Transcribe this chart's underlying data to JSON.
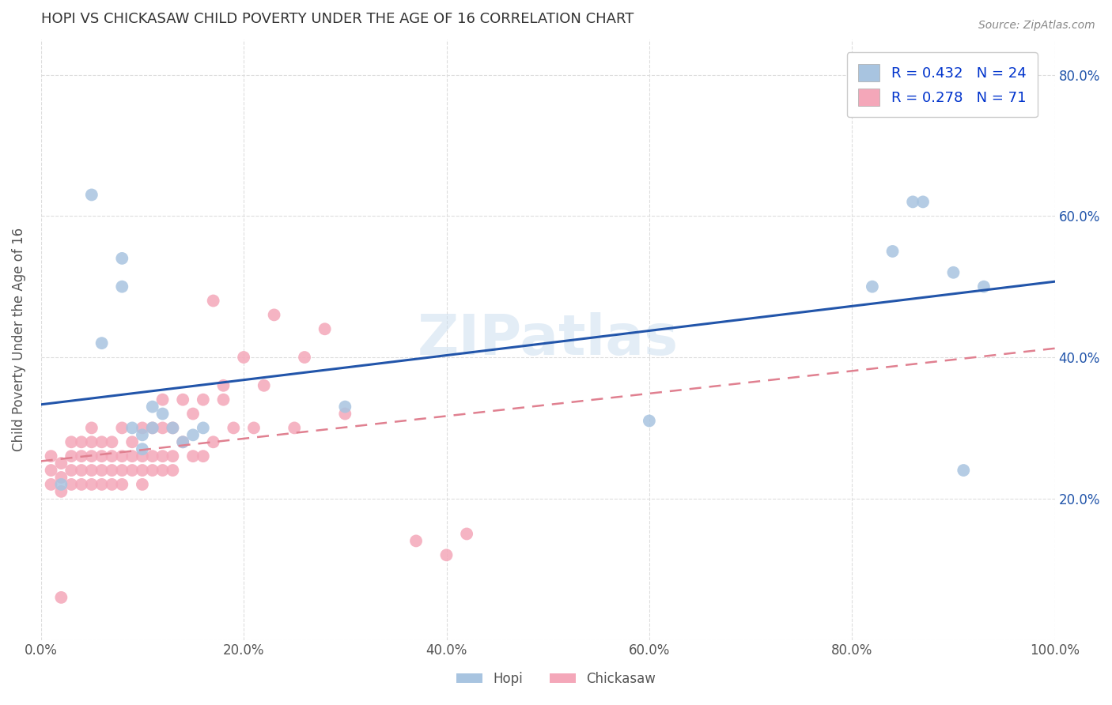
{
  "title": "HOPI VS CHICKASAW CHILD POVERTY UNDER THE AGE OF 16 CORRELATION CHART",
  "source": "Source: ZipAtlas.com",
  "ylabel": "Child Poverty Under the Age of 16",
  "xlim": [
    0.0,
    1.0
  ],
  "ylim": [
    0.0,
    0.85
  ],
  "x_ticks": [
    0.0,
    0.2,
    0.4,
    0.6,
    0.8,
    1.0
  ],
  "x_tick_labels": [
    "0.0%",
    "20.0%",
    "40.0%",
    "60.0%",
    "80.0%",
    "100.0%"
  ],
  "y_ticks": [
    0.0,
    0.2,
    0.4,
    0.6,
    0.8
  ],
  "y_tick_labels": [
    "",
    "20.0%",
    "40.0%",
    "60.0%",
    "80.0%"
  ],
  "hopi_R": 0.432,
  "hopi_N": 24,
  "chickasaw_R": 0.278,
  "chickasaw_N": 71,
  "hopi_color": "#a8c4e0",
  "chickasaw_color": "#f4a7b9",
  "hopi_line_color": "#2255aa",
  "chickasaw_line_color": "#e08090",
  "watermark": "ZIPatlas",
  "legend_text_color": "#0033cc",
  "hopi_x": [
    0.02,
    0.05,
    0.06,
    0.08,
    0.08,
    0.09,
    0.1,
    0.1,
    0.11,
    0.11,
    0.12,
    0.13,
    0.14,
    0.15,
    0.16,
    0.3,
    0.6,
    0.82,
    0.84,
    0.86,
    0.87,
    0.9,
    0.91,
    0.93
  ],
  "hopi_y": [
    0.22,
    0.63,
    0.42,
    0.54,
    0.5,
    0.3,
    0.29,
    0.27,
    0.33,
    0.3,
    0.32,
    0.3,
    0.28,
    0.29,
    0.3,
    0.33,
    0.31,
    0.5,
    0.55,
    0.62,
    0.62,
    0.52,
    0.24,
    0.5
  ],
  "chickasaw_x": [
    0.01,
    0.01,
    0.01,
    0.02,
    0.02,
    0.02,
    0.03,
    0.03,
    0.03,
    0.03,
    0.04,
    0.04,
    0.04,
    0.04,
    0.05,
    0.05,
    0.05,
    0.05,
    0.05,
    0.06,
    0.06,
    0.06,
    0.06,
    0.07,
    0.07,
    0.07,
    0.07,
    0.08,
    0.08,
    0.08,
    0.08,
    0.09,
    0.09,
    0.09,
    0.1,
    0.1,
    0.1,
    0.1,
    0.11,
    0.11,
    0.11,
    0.12,
    0.12,
    0.12,
    0.12,
    0.13,
    0.13,
    0.13,
    0.14,
    0.14,
    0.15,
    0.15,
    0.16,
    0.16,
    0.17,
    0.17,
    0.18,
    0.18,
    0.19,
    0.2,
    0.21,
    0.22,
    0.23,
    0.25,
    0.26,
    0.28,
    0.3,
    0.37,
    0.4,
    0.42,
    0.02
  ],
  "chickasaw_y": [
    0.22,
    0.24,
    0.26,
    0.21,
    0.23,
    0.25,
    0.22,
    0.24,
    0.26,
    0.28,
    0.22,
    0.24,
    0.26,
    0.28,
    0.22,
    0.24,
    0.26,
    0.28,
    0.3,
    0.22,
    0.24,
    0.26,
    0.28,
    0.22,
    0.24,
    0.26,
    0.28,
    0.22,
    0.24,
    0.26,
    0.3,
    0.24,
    0.26,
    0.28,
    0.22,
    0.24,
    0.26,
    0.3,
    0.24,
    0.26,
    0.3,
    0.24,
    0.26,
    0.3,
    0.34,
    0.24,
    0.26,
    0.3,
    0.28,
    0.34,
    0.26,
    0.32,
    0.26,
    0.34,
    0.28,
    0.48,
    0.34,
    0.36,
    0.3,
    0.4,
    0.3,
    0.36,
    0.46,
    0.3,
    0.4,
    0.44,
    0.32,
    0.14,
    0.12,
    0.15,
    0.06
  ]
}
